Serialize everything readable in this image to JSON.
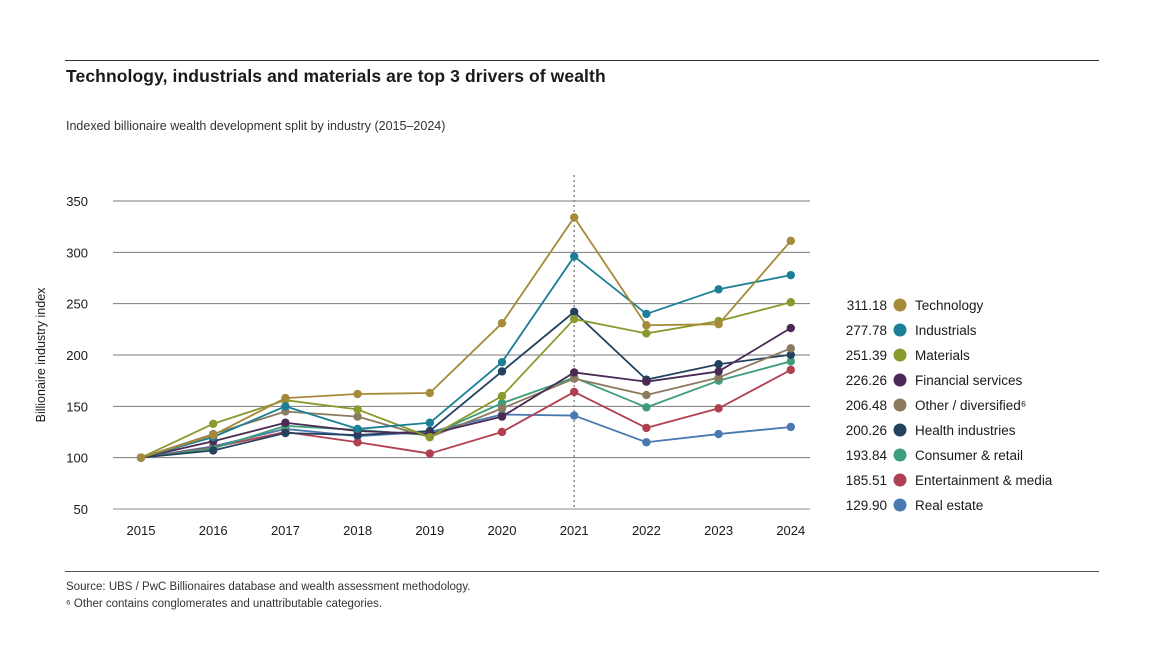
{
  "header": {
    "title": "Technology, industrials and materials are top 3 drivers of wealth",
    "subtitle": "Indexed billionaire wealth development split by industry (2015–2024)"
  },
  "footer": {
    "source": "Source: UBS / PwC Billionaires database and wealth assessment methodology.",
    "footnote": "⁶ Other contains conglomerates and unattributable categories."
  },
  "chart_data": {
    "type": "line",
    "title": "Technology, industrials and materials are top 3 drivers of wealth",
    "subtitle": "Indexed billionaire wealth development split by industry (2015–2024)",
    "xlabel": "",
    "ylabel": "Billionaire industry index",
    "ylim": [
      50,
      350
    ],
    "yticks": [
      50,
      100,
      150,
      200,
      250,
      300,
      350
    ],
    "grid": true,
    "highlight_year": "2021",
    "legend_position": "right",
    "categories": [
      "2015",
      "2016",
      "2017",
      "2018",
      "2019",
      "2020",
      "2021",
      "2022",
      "2023",
      "2024"
    ],
    "series": [
      {
        "name": "Technology",
        "legend_value": "311.18",
        "color": "#a68a3a",
        "values": [
          100,
          122,
          158,
          162,
          163,
          231,
          334,
          229,
          230,
          311.18
        ]
      },
      {
        "name": "Industrials",
        "legend_value": "277.78",
        "color": "#1b7f96",
        "values": [
          100,
          120,
          150,
          128,
          134,
          193,
          296,
          240,
          264,
          277.78
        ]
      },
      {
        "name": "Materials",
        "legend_value": "251.39",
        "color": "#8a9a2e",
        "values": [
          100,
          133,
          156,
          147,
          120,
          160,
          235,
          221,
          233,
          251.39
        ]
      },
      {
        "name": "Financial services",
        "legend_value": "226.26",
        "color": "#4a2a55",
        "values": [
          100,
          116,
          134,
          126,
          123,
          140,
          183,
          174,
          184,
          226.26
        ]
      },
      {
        "name": "Other / diversified⁶",
        "legend_value": "206.48",
        "color": "#8c7a60",
        "values": [
          100,
          123,
          145,
          140,
          120,
          148,
          177,
          161,
          178,
          206.48
        ]
      },
      {
        "name": "Health industries",
        "legend_value": "200.26",
        "color": "#24425e",
        "values": [
          100,
          107,
          124,
          122,
          126,
          184,
          242,
          176,
          191,
          200.26
        ]
      },
      {
        "name": "Consumer & retail",
        "legend_value": "193.84",
        "color": "#3e9e7a",
        "values": [
          100,
          109,
          131,
          127,
          122,
          153,
          178,
          149,
          175,
          193.84
        ]
      },
      {
        "name": "Entertainment & media",
        "legend_value": "185.51",
        "color": "#b04050",
        "values": [
          100,
          110,
          125,
          115,
          104,
          125,
          164,
          129,
          148,
          185.51
        ]
      },
      {
        "name": "Real estate",
        "legend_value": "129.90",
        "color": "#4a78b0",
        "values": [
          100,
          111,
          128,
          121,
          125,
          142,
          141,
          115,
          123,
          129.9
        ]
      }
    ]
  }
}
